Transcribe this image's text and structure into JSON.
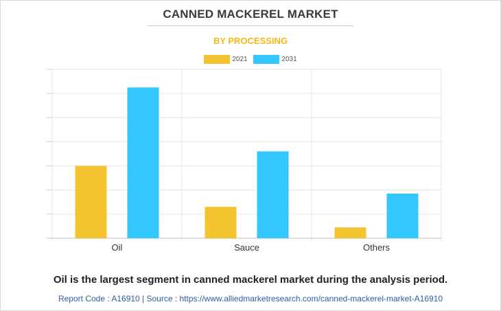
{
  "colors": {
    "series_2021": "#f4c430",
    "series_2031": "#33c6ff",
    "title": "#3a3a3a",
    "subtitle": "#f5b81c",
    "grid": "#e6e6e6",
    "footer_link": "#2b5ea8"
  },
  "footer": {
    "caption": "Oil is the largest segment in canned mackerel market during the analysis period.",
    "source": "Report Code : A16910  |  Source : https://www.alliedmarketresearch.com/canned-mackerel-market-A16910"
  },
  "chart_data": {
    "type": "bar",
    "title": "CANNED MACKEREL MARKET",
    "subtitle": "BY PROCESSING",
    "categories": [
      "Oil",
      "Sauce",
      "Others"
    ],
    "series": [
      {
        "name": "2021",
        "values": [
          30,
          13,
          4.5
        ]
      },
      {
        "name": "2031",
        "values": [
          62.5,
          36,
          18.5
        ]
      }
    ],
    "ylim": [
      0,
      70
    ],
    "grid": true,
    "legend": "top-center",
    "xlabel": "",
    "ylabel": ""
  }
}
